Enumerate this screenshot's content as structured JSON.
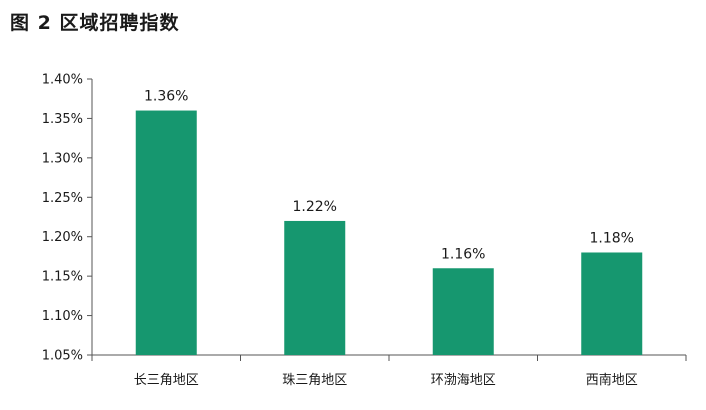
{
  "figure_title": "图 2  区域招聘指数",
  "colors": {
    "bar": "#16976f",
    "axis": "#555555",
    "text": "#1a1a1a"
  },
  "chart_data": {
    "type": "bar",
    "title": "图 2  区域招聘指数",
    "categories": [
      "长三角地区",
      "珠三角地区",
      "环渤海地区",
      "西南地区"
    ],
    "values": [
      1.36,
      1.22,
      1.16,
      1.18
    ],
    "value_labels": [
      "1.36%",
      "1.22%",
      "1.16%",
      "1.18%"
    ],
    "ylim": [
      1.05,
      1.4
    ],
    "yticks": [
      1.05,
      1.1,
      1.15,
      1.2,
      1.25,
      1.3,
      1.35,
      1.4
    ],
    "ytick_labels": [
      "1.05%",
      "1.10%",
      "1.15%",
      "1.20%",
      "1.25%",
      "1.30%",
      "1.35%",
      "1.40%"
    ],
    "xlabel": "",
    "ylabel": "",
    "grid": false,
    "legend": "none"
  }
}
